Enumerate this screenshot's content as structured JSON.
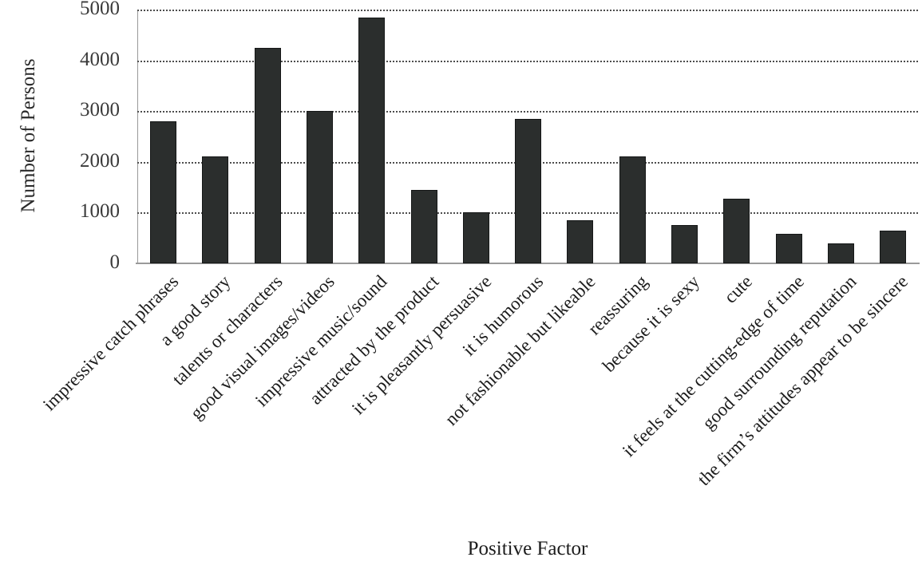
{
  "chart_data": {
    "type": "bar",
    "title": "",
    "xlabel": "Positive Factor",
    "ylabel": "Number of Persons",
    "ylim": [
      0,
      5000
    ],
    "yticks": [
      0,
      1000,
      2000,
      3000,
      4000,
      5000
    ],
    "grid": "horizontal-dotted",
    "legend": "none",
    "bar_color": "#2b2e2d",
    "axis_color": "#9a9a9a",
    "categories": [
      "impressive catch phrases",
      "a good story",
      "talents or characters",
      "good visual images/videos",
      "impressive music/sound",
      "attracted by the product",
      "it is pleasantly persuasive",
      "it is humorous",
      "not fashionable but likeable",
      "reassuring",
      "because it is sexy",
      "cute",
      "it feels at the cutting-edge of time",
      "good surrounding reputation",
      "the firm’s attitudes appear to be sincere"
    ],
    "values": [
      2800,
      2100,
      4250,
      3000,
      4850,
      1450,
      1000,
      2850,
      850,
      2100,
      750,
      1280,
      580,
      400,
      640
    ]
  }
}
